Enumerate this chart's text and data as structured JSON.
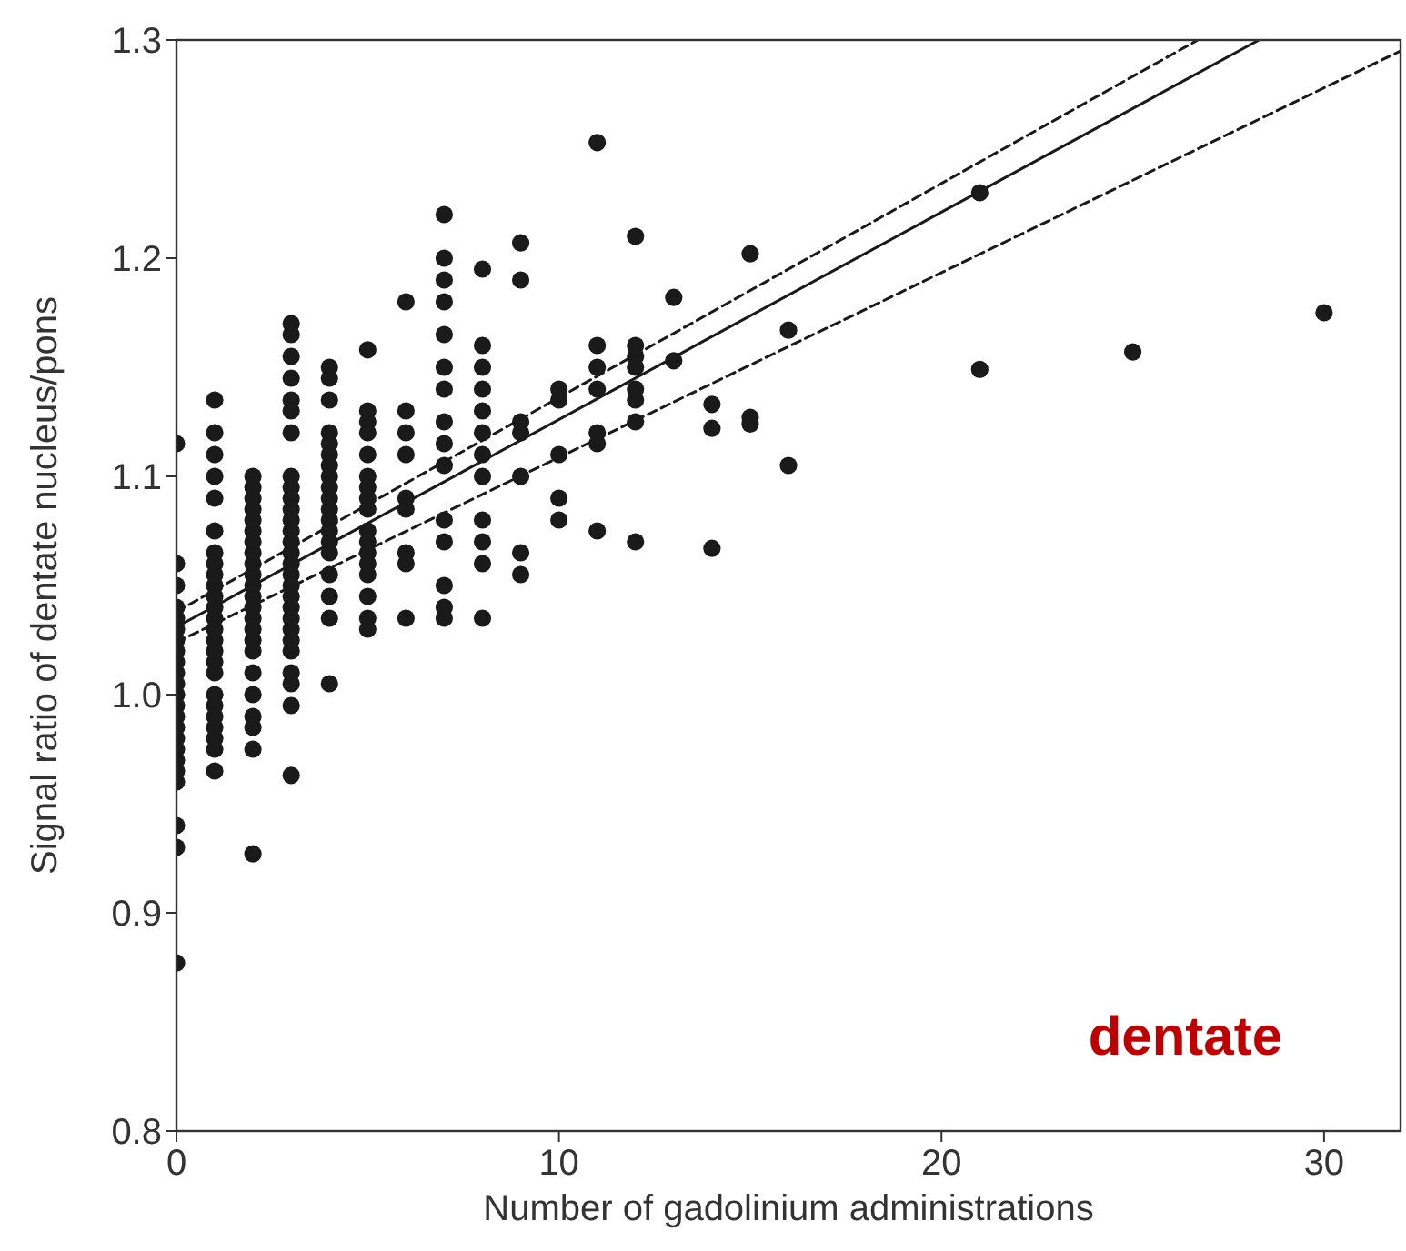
{
  "chart_data": {
    "type": "scatter",
    "xlabel": "Number of gadolinium administrations",
    "ylabel": "Signal ratio of dentate nucleus/pons",
    "annotations": [
      "dentate"
    ],
    "xlim": [
      0,
      32
    ],
    "xticks": [
      0,
      10,
      20,
      30
    ],
    "ylim": [
      0.8,
      1.3
    ],
    "yticks": [
      0.8,
      0.9,
      {
        "value": 1,
        "label": "1.0"
      },
      1.1,
      1.2,
      1.3
    ],
    "grid": false,
    "marker": "circle",
    "series": [
      {
        "color": "#1a1a1a",
        "x": [
          0,
          0,
          0,
          0,
          0,
          0,
          0,
          0,
          0,
          0,
          0,
          0,
          0,
          0,
          0,
          0,
          0,
          0,
          0,
          0,
          0,
          0,
          0,
          1,
          1,
          1,
          1,
          1,
          1,
          1,
          1,
          1,
          1,
          1,
          1,
          1,
          1,
          1,
          1,
          1,
          1,
          1,
          1,
          1,
          1,
          1,
          1,
          1,
          2,
          2,
          2,
          2,
          2,
          2,
          2,
          2,
          2,
          2,
          2,
          2,
          2,
          2,
          2,
          2,
          2,
          2,
          2,
          2,
          2,
          2,
          2,
          3,
          3,
          3,
          3,
          3,
          3,
          3,
          3,
          3,
          3,
          3,
          3,
          3,
          3,
          3,
          3,
          3,
          3,
          3,
          3,
          3,
          3,
          3,
          3,
          3,
          3,
          3,
          3,
          4,
          4,
          4,
          4,
          4,
          4,
          4,
          4,
          4,
          4,
          4,
          4,
          4,
          4,
          4,
          4,
          4,
          4,
          4,
          5,
          5,
          5,
          5,
          5,
          5,
          5,
          5,
          5,
          5,
          5,
          5,
          5,
          5,
          5,
          5,
          5,
          6,
          6,
          6,
          6,
          6,
          6,
          6,
          6,
          6,
          7,
          7,
          7,
          7,
          7,
          7,
          7,
          7,
          7,
          7,
          7,
          7,
          7,
          7,
          7,
          8,
          8,
          8,
          8,
          8,
          8,
          8,
          8,
          8,
          8,
          8,
          8,
          9,
          9,
          9,
          9,
          9,
          9,
          9,
          10,
          10,
          10,
          10,
          10,
          11,
          11,
          11,
          11,
          11,
          11,
          11,
          12,
          12,
          12,
          12,
          12,
          12,
          12,
          12,
          13,
          13,
          14,
          14,
          14,
          15,
          15,
          15,
          16,
          16,
          21,
          21,
          25,
          30
        ],
        "values": [
          1.115,
          1.06,
          1.05,
          1.04,
          1.035,
          1.03,
          1.025,
          1.02,
          1.015,
          1.01,
          1.005,
          1.0,
          0.995,
          0.99,
          0.985,
          0.98,
          0.975,
          0.97,
          0.965,
          0.96,
          0.94,
          0.93,
          0.877,
          1.135,
          1.12,
          1.11,
          1.1,
          1.09,
          1.075,
          1.065,
          1.06,
          1.055,
          1.05,
          1.045,
          1.04,
          1.035,
          1.03,
          1.025,
          1.02,
          1.015,
          1.01,
          1.0,
          0.995,
          0.99,
          0.985,
          0.98,
          0.975,
          0.965,
          1.1,
          1.095,
          1.09,
          1.085,
          1.08,
          1.075,
          1.07,
          1.065,
          1.06,
          1.055,
          1.05,
          1.045,
          1.04,
          1.035,
          1.03,
          1.025,
          1.02,
          1.01,
          1.0,
          0.99,
          0.985,
          0.975,
          0.927,
          1.17,
          1.165,
          1.155,
          1.145,
          1.135,
          1.13,
          1.12,
          1.1,
          1.095,
          1.09,
          1.085,
          1.08,
          1.075,
          1.07,
          1.065,
          1.06,
          1.055,
          1.05,
          1.045,
          1.04,
          1.035,
          1.03,
          1.025,
          1.02,
          1.01,
          1.005,
          0.995,
          0.963,
          1.15,
          1.145,
          1.135,
          1.12,
          1.115,
          1.11,
          1.105,
          1.1,
          1.095,
          1.09,
          1.085,
          1.08,
          1.075,
          1.07,
          1.065,
          1.055,
          1.045,
          1.035,
          1.005,
          1.158,
          1.13,
          1.125,
          1.12,
          1.11,
          1.1,
          1.095,
          1.09,
          1.085,
          1.075,
          1.07,
          1.065,
          1.06,
          1.055,
          1.045,
          1.035,
          1.03,
          1.18,
          1.13,
          1.12,
          1.11,
          1.09,
          1.085,
          1.065,
          1.06,
          1.035,
          1.22,
          1.2,
          1.19,
          1.18,
          1.165,
          1.15,
          1.14,
          1.125,
          1.115,
          1.105,
          1.08,
          1.07,
          1.05,
          1.04,
          1.035,
          1.195,
          1.16,
          1.15,
          1.14,
          1.13,
          1.12,
          1.11,
          1.1,
          1.08,
          1.07,
          1.06,
          1.035,
          1.207,
          1.19,
          1.125,
          1.12,
          1.1,
          1.065,
          1.055,
          1.14,
          1.135,
          1.11,
          1.09,
          1.08,
          1.253,
          1.16,
          1.15,
          1.14,
          1.12,
          1.115,
          1.075,
          1.21,
          1.16,
          1.155,
          1.15,
          1.14,
          1.135,
          1.125,
          1.07,
          1.182,
          1.153,
          1.133,
          1.122,
          1.067,
          1.202,
          1.127,
          1.124,
          1.167,
          1.105,
          1.23,
          1.149,
          1.157,
          1.175
        ]
      },
      {
        "type": "line",
        "color": "#1a1a1a",
        "line_style": "solid",
        "marker": "none",
        "x": [
          0,
          28.3
        ],
        "values": [
          1.031,
          1.3
        ]
      },
      {
        "type": "line",
        "color": "#1a1a1a",
        "line_style": "dashed",
        "marker": "none",
        "x": [
          0,
          26.7
        ],
        "values": [
          1.038,
          1.3
        ]
      },
      {
        "type": "line",
        "color": "#1a1a1a",
        "line_style": "dashed",
        "marker": "none",
        "x": [
          0,
          32
        ],
        "values": [
          1.024,
          1.295
        ]
      }
    ]
  }
}
